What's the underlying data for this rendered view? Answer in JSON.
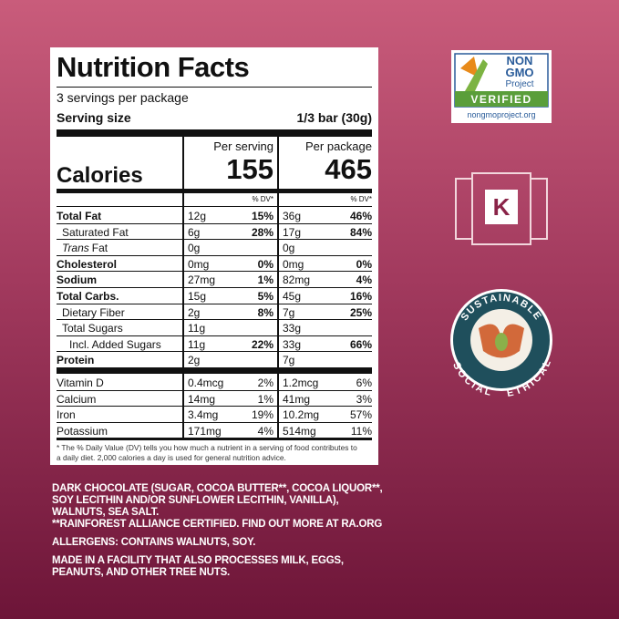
{
  "label": {
    "title": "Nutrition Facts",
    "servings": "3 servings per package",
    "serving_size_label": "Serving size",
    "serving_size": "1/3 bar (30g)",
    "columns": [
      "Per serving",
      "Per package"
    ],
    "calories_label": "Calories",
    "calories": [
      "155",
      "465"
    ],
    "dv_header": [
      "% DV*",
      "% DV*"
    ],
    "nutrients": [
      {
        "name": "Total Fat",
        "bold": true,
        "indent": 0,
        "serving": "12g",
        "serving_dv": "15%",
        "package": "36g",
        "package_dv": "46%"
      },
      {
        "name": "Saturated Fat",
        "bold": false,
        "indent": 1,
        "serving": "6g",
        "serving_dv": "28%",
        "package": "17g",
        "package_dv": "84%"
      },
      {
        "italic_prefix": "Trans",
        "name": "Fat",
        "bold": false,
        "indent": 1,
        "serving": "0g",
        "package": "0g"
      },
      {
        "name": "Cholesterol",
        "bold": true,
        "indent": 0,
        "serving": "0mg",
        "serving_dv": "0%",
        "package": "0mg",
        "package_dv": "0%"
      },
      {
        "name": "Sodium",
        "bold": true,
        "indent": 0,
        "serving": "27mg",
        "serving_dv": "1%",
        "package": "82mg",
        "package_dv": "4%"
      },
      {
        "name": "Total Carbs.",
        "bold": true,
        "indent": 0,
        "serving": "15g",
        "serving_dv": "5%",
        "package": "45g",
        "package_dv": "16%"
      },
      {
        "name": "Dietary Fiber",
        "bold": false,
        "indent": 1,
        "serving": "2g",
        "serving_dv": "8%",
        "package": "7g",
        "package_dv": "25%"
      },
      {
        "name": "Total Sugars",
        "bold": false,
        "indent": 1,
        "serving": "11g",
        "package": "33g"
      },
      {
        "name": "Incl. Added Sugars",
        "bold": false,
        "indent": 2,
        "serving": "11g",
        "serving_dv": "22%",
        "package": "33g",
        "package_dv": "66%"
      },
      {
        "name": "Protein",
        "bold": true,
        "indent": 0,
        "serving": "2g",
        "package": "7g"
      }
    ],
    "vitamins": [
      {
        "name": "Vitamin D",
        "serving": "0.4mcg",
        "serving_dv": "2%",
        "package": "1.2mcg",
        "package_dv": "6%"
      },
      {
        "name": "Calcium",
        "serving": "14mg",
        "serving_dv": "1%",
        "package": "41mg",
        "package_dv": "3%"
      },
      {
        "name": "Iron",
        "serving": "3.4mg",
        "serving_dv": "19%",
        "package": "10.2mg",
        "package_dv": "57%"
      },
      {
        "name": "Potassium",
        "serving": "171mg",
        "serving_dv": "4%",
        "package": "514mg",
        "package_dv": "11%"
      }
    ],
    "footnote": [
      "* The % Daily Value (DV) tells you how much a nutrient in a serving of food contributes to",
      "a daily diet. 2,000 calories a day is used for general nutrition advice."
    ]
  },
  "ingredients": [
    [
      "DARK CHOCOLATE (SUGAR, COCOA BUTTER**, COCOA LIQUOR**,",
      "SOY LECITHIN AND/OR SUNFLOWER LECITHIN, VANILLA),",
      "WALNUTS, SEA SALT.",
      "**RAINFOREST ALLIANCE CERTIFIED. FIND OUT MORE AT RA.ORG"
    ],
    [
      "ALLERGENS: CONTAINS WALNUTS, SOY."
    ],
    [
      "MADE IN A FACILITY THAT ALSO PROCESSES MILK, EGGS,",
      "PEANUTS, AND OTHER TREE NUTS."
    ]
  ],
  "badges": {
    "non_gmo": [
      "NON",
      "GMO",
      "Project",
      "VERIFIED",
      "nongmoproject.org"
    ],
    "kosher": "K",
    "sustainable": [
      "SUSTAINABLE",
      "SOCIAL",
      "ETHICAL"
    ]
  }
}
